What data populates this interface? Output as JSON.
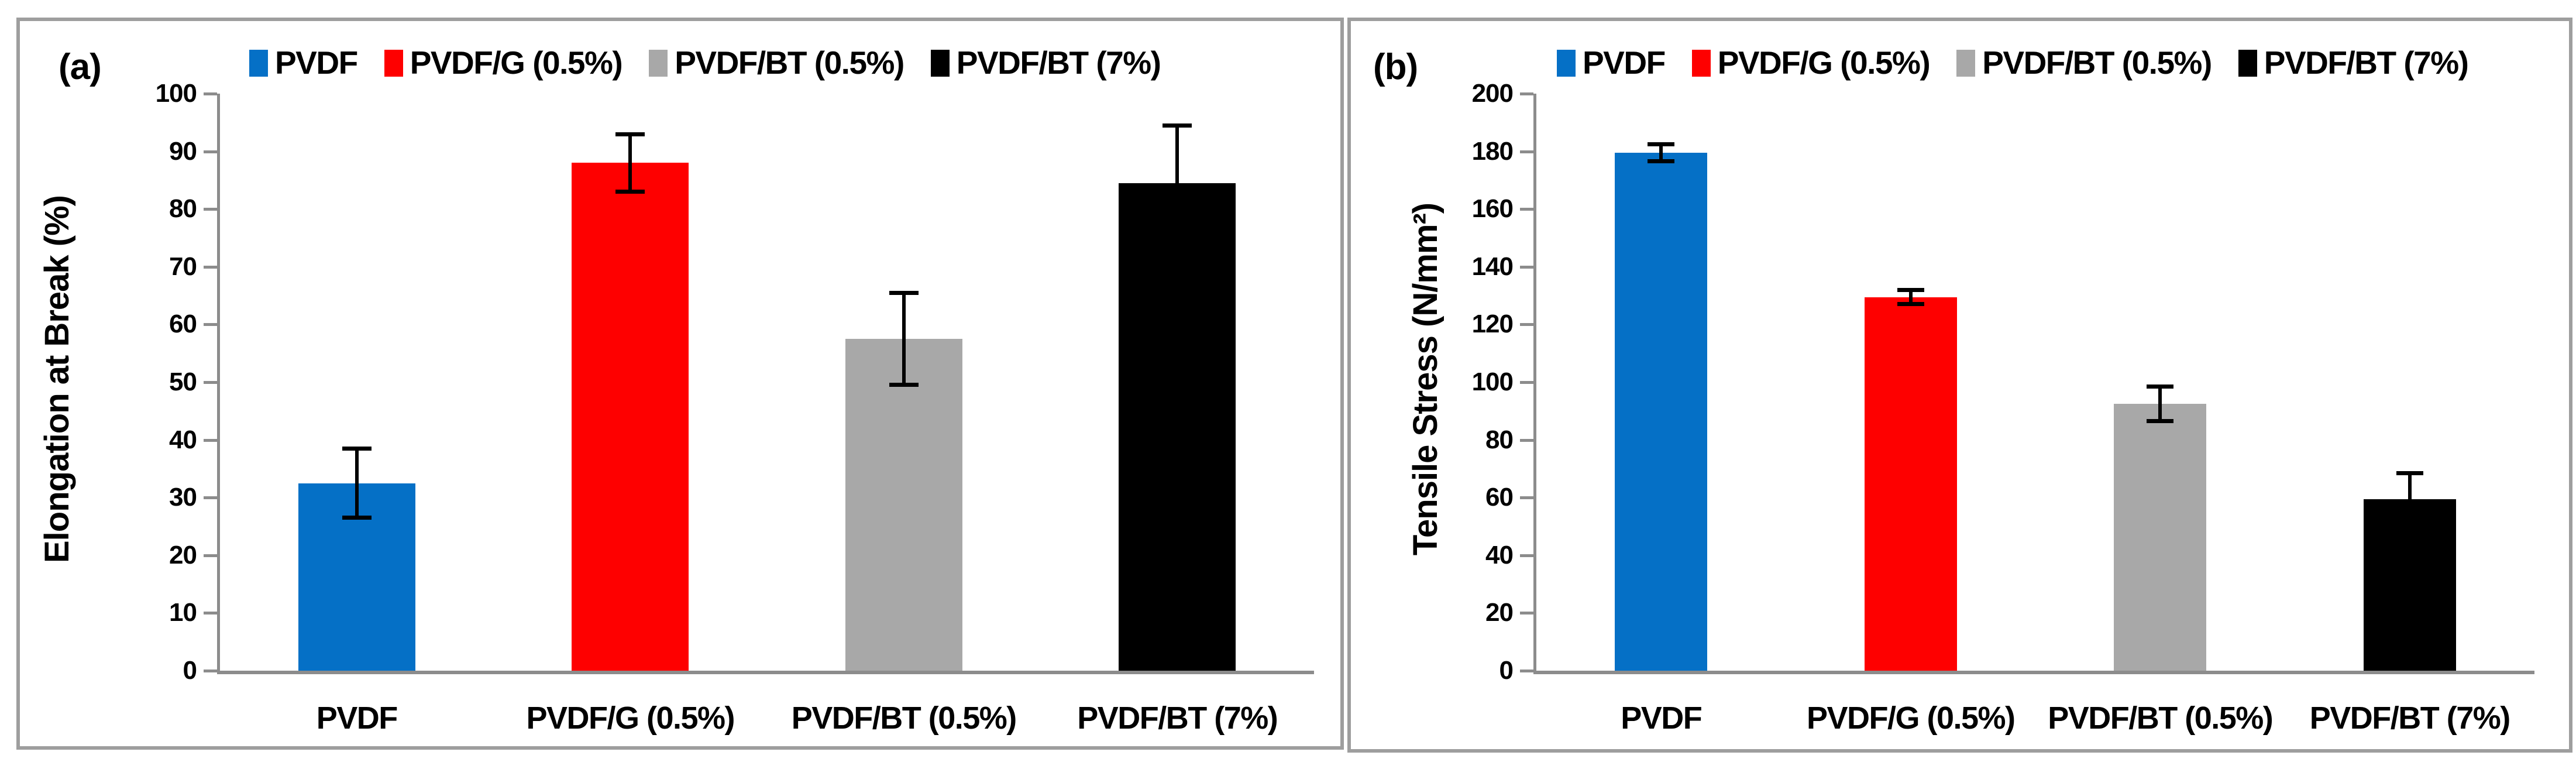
{
  "figure": {
    "background": "#FFFFFF",
    "border_color": "#9E9E9E",
    "axis_color": "#8C8C8C",
    "text_color": "#000000"
  },
  "legend": {
    "position": "top",
    "items": [
      {
        "label": "PVDF",
        "color": "#0570C6"
      },
      {
        "label": "PVDF/G (0.5%)",
        "color": "#FE0000"
      },
      {
        "label": "PVDF/BT (0.5%)",
        "color": "#A8A8A8"
      },
      {
        "label": "PVDF/BT (7%)",
        "color": "#000000"
      }
    ]
  },
  "chart_data": [
    {
      "type": "bar",
      "panel_label": "(a)",
      "title": "",
      "xlabel": "",
      "ylabel": "Elongation at Break (%)",
      "categories": [
        "PVDF",
        "PVDF/G (0.5%)",
        "PVDF/BT (0.5%)",
        "PVDF/BT (7%)"
      ],
      "values": [
        32.5,
        88,
        57.5,
        84.5
      ],
      "errors": [
        6,
        5,
        8,
        10
      ],
      "bar_colors": [
        "#0570C6",
        "#FE0000",
        "#A8A8A8",
        "#000000"
      ],
      "ylim": [
        0,
        100
      ],
      "ytick_step": 10,
      "yticks": [
        0,
        10,
        20,
        30,
        40,
        50,
        60,
        70,
        80,
        90,
        100
      ],
      "grid": false,
      "legend_position": "top"
    },
    {
      "type": "bar",
      "panel_label": "(b)",
      "title": "",
      "xlabel": "",
      "ylabel": "Tensile Stress (N/mm²)",
      "categories": [
        "PVDF",
        "PVDF/G (0.5%)",
        "PVDF/BT (0.5%)",
        "PVDF/BT (7%)"
      ],
      "values": [
        179.5,
        129.5,
        92.5,
        59.5
      ],
      "errors": [
        3,
        2.5,
        6,
        9
      ],
      "bar_colors": [
        "#0570C6",
        "#FE0000",
        "#A8A8A8",
        "#000000"
      ],
      "ylim": [
        0,
        200
      ],
      "ytick_step": 20,
      "yticks": [
        0,
        20,
        40,
        60,
        80,
        100,
        120,
        140,
        160,
        180,
        200
      ],
      "grid": false,
      "legend_position": "top"
    }
  ]
}
